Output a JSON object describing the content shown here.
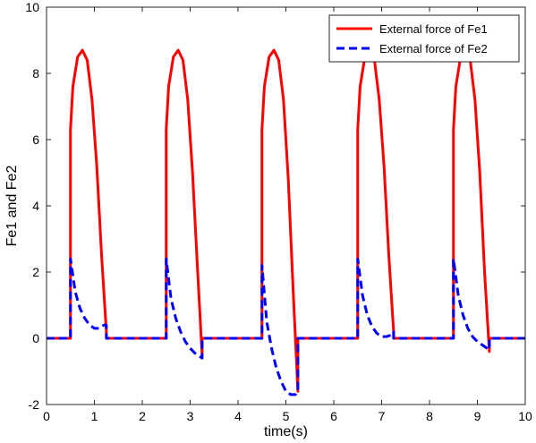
{
  "chart_data": {
    "type": "line",
    "title": "",
    "xlabel": "time(s)",
    "ylabel": "Fe1 and Fe2",
    "xlim": [
      0,
      10
    ],
    "ylim": [
      -2,
      10
    ],
    "xticks": [
      0,
      1,
      2,
      3,
      4,
      5,
      6,
      7,
      8,
      9,
      10
    ],
    "yticks": [
      -2,
      0,
      2,
      4,
      6,
      8,
      10
    ],
    "grid": false,
    "legend_position": "top-right",
    "series": [
      {
        "name": "External force of Fe1",
        "color": "#ff0000",
        "style": "solid",
        "x": [
          0,
          0.5,
          0.5,
          0.55,
          0.65,
          0.75,
          0.85,
          0.95,
          1.05,
          1.15,
          1.25,
          1.25,
          2.5,
          2.5,
          2.55,
          2.65,
          2.75,
          2.85,
          2.95,
          3.05,
          3.15,
          3.25,
          3.25,
          4.5,
          4.5,
          4.55,
          4.65,
          4.75,
          4.85,
          4.95,
          5.05,
          5.15,
          5.25,
          5.25,
          6.5,
          6.5,
          6.55,
          6.65,
          6.75,
          6.85,
          6.95,
          7.05,
          7.15,
          7.25,
          7.25,
          8.5,
          8.5,
          8.55,
          8.65,
          8.75,
          8.85,
          8.95,
          9.05,
          9.15,
          9.25,
          9.25,
          10
        ],
        "y": [
          0,
          0,
          6.3,
          7.6,
          8.5,
          8.7,
          8.4,
          7.2,
          5.2,
          2.5,
          0.2,
          0,
          0,
          6.3,
          7.6,
          8.5,
          8.7,
          8.4,
          7.2,
          5.0,
          2.2,
          -0.5,
          0,
          0,
          6.3,
          7.6,
          8.5,
          8.7,
          8.4,
          7.2,
          4.8,
          1.5,
          -1.6,
          0,
          0,
          6.3,
          7.6,
          8.5,
          8.7,
          8.4,
          7.2,
          5.2,
          2.5,
          0.2,
          0,
          0,
          6.3,
          7.6,
          8.5,
          8.7,
          8.4,
          7.2,
          5.0,
          2.0,
          -0.4,
          0,
          0
        ]
      },
      {
        "name": "External force of Fe2",
        "color": "#0000ff",
        "style": "dashed",
        "x": [
          0,
          0.5,
          0.5,
          0.6,
          0.7,
          0.8,
          0.9,
          1.0,
          1.1,
          1.2,
          1.25,
          1.25,
          2.5,
          2.5,
          2.6,
          2.7,
          2.8,
          2.9,
          3.0,
          3.1,
          3.2,
          3.25,
          3.25,
          4.5,
          4.5,
          4.6,
          4.7,
          4.8,
          4.9,
          5.0,
          5.1,
          5.2,
          5.25,
          5.25,
          6.5,
          6.5,
          6.6,
          6.7,
          6.8,
          6.9,
          7.0,
          7.1,
          7.2,
          7.25,
          7.25,
          8.5,
          8.5,
          8.6,
          8.7,
          8.8,
          8.9,
          9.0,
          9.1,
          9.2,
          9.25,
          9.25,
          10
        ],
        "y": [
          0,
          0,
          2.4,
          1.4,
          0.9,
          0.6,
          0.4,
          0.3,
          0.3,
          0.4,
          0.4,
          0,
          0,
          2.4,
          1.2,
          0.6,
          0.2,
          -0.1,
          -0.3,
          -0.45,
          -0.55,
          -0.6,
          0,
          0,
          2.2,
          0.5,
          -0.3,
          -0.9,
          -1.3,
          -1.6,
          -1.7,
          -1.7,
          -1.6,
          0,
          0,
          2.4,
          1.3,
          0.7,
          0.35,
          0.15,
          0.05,
          0.05,
          0.1,
          0.2,
          0,
          0,
          2.4,
          1.3,
          0.7,
          0.3,
          0.05,
          -0.1,
          -0.2,
          -0.3,
          -0.35,
          0,
          0
        ]
      }
    ]
  }
}
